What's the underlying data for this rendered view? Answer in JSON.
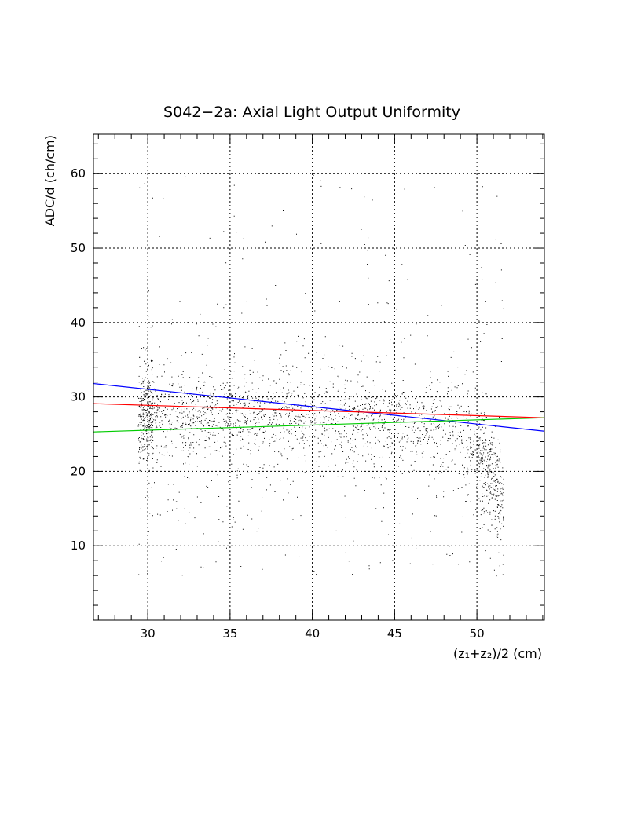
{
  "chart_data": {
    "type": "scatter",
    "title": "S042−2a: Axial Light Output Uniformity",
    "xlabel": "(z₁+z₂)/2 (cm)",
    "ylabel": "ADC/d (ch/cm)",
    "xlim": [
      26.7,
      54.1
    ],
    "ylim": [
      0,
      65.3
    ],
    "xticks": [
      30,
      35,
      40,
      45,
      50
    ],
    "yticks": [
      10,
      20,
      30,
      40,
      50,
      60
    ],
    "grid": true,
    "scatter_description_points": {
      "x_range": [
        29.4,
        51.6
      ],
      "y_core_range": [
        22,
        33
      ],
      "y_full_range": [
        6,
        60
      ]
    },
    "band": [
      {
        "x": 29.5,
        "y": 27.5
      },
      {
        "x": 32,
        "y": 27.5
      },
      {
        "x": 35,
        "y": 27.3
      },
      {
        "x": 38,
        "y": 27.2
      },
      {
        "x": 41,
        "y": 27.0
      },
      {
        "x": 44,
        "y": 26.8
      },
      {
        "x": 47,
        "y": 26.2
      },
      {
        "x": 49,
        "y": 25.0
      },
      {
        "x": 50.5,
        "y": 21.0
      },
      {
        "x": 51.5,
        "y": 16.0
      }
    ],
    "series": [
      {
        "color": "#0000ff",
        "x": [
          26.7,
          54.1
        ],
        "y": [
          31.8,
          25.4
        ]
      },
      {
        "color": "#ff0000",
        "x": [
          26.7,
          54.1
        ],
        "y": [
          29.1,
          27.2
        ]
      },
      {
        "color": "#00cc00",
        "x": [
          26.7,
          54.1
        ],
        "y": [
          25.3,
          27.2
        ]
      }
    ]
  }
}
